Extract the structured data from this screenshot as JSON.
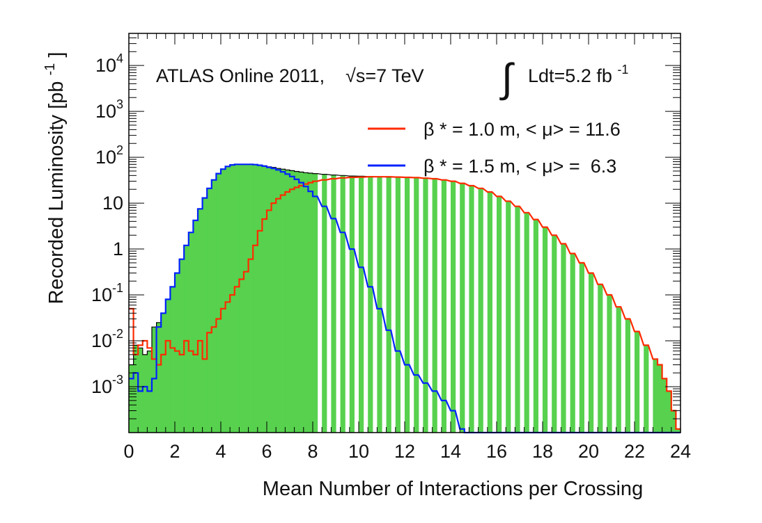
{
  "chart_data": {
    "type": "area",
    "log_y": true,
    "xlabel": "Mean Number of Interactions per Crossing",
    "ylabel": {
      "text": "Recorded Luminosity [pb",
      "sup": "-1",
      "close": "]"
    },
    "xlim": [
      0,
      24
    ],
    "ylim": [
      0.0001,
      50000
    ],
    "x_ticks": [
      "0",
      "2",
      "4",
      "6",
      "8",
      "10",
      "12",
      "14",
      "16",
      "18",
      "20",
      "22",
      "24"
    ],
    "y_ticks": [
      {
        "value": 0.001,
        "base": "10",
        "sup": "-3"
      },
      {
        "value": 0.01,
        "base": "10",
        "sup": "-2"
      },
      {
        "value": 0.1,
        "base": "10",
        "sup": "-1"
      },
      {
        "value": 1,
        "base": "1",
        "sup": ""
      },
      {
        "value": 10,
        "base": "10",
        "sup": ""
      },
      {
        "value": 100,
        "base": "10",
        "sup": "2"
      },
      {
        "value": 1000,
        "base": "10",
        "sup": "3"
      },
      {
        "value": 10000,
        "base": "10",
        "sup": "4"
      }
    ],
    "annotation": {
      "experiment": "ATLAS Online 2011,",
      "sqrt": "√s=7 TeV",
      "integral_sign": "∫",
      "lumi": "Ldt=5.2 fb",
      "lumi_sup": "-1"
    },
    "colors": {
      "total_fill": "#57d14e",
      "total_line": "#000000",
      "red": "#ff2a00",
      "blue": "#0022ff"
    },
    "series": [
      {
        "name": "total",
        "color": "#57d14e",
        "x": [
          0,
          0.2,
          0.4,
          0.6,
          0.8,
          1.0,
          1.2,
          1.4,
          1.6,
          1.8,
          2.0,
          2.2,
          2.4,
          2.6,
          2.8,
          3.0,
          3.2,
          3.4,
          3.6,
          3.8,
          4.0,
          4.2,
          4.4,
          4.6,
          4.8,
          5.0,
          5.2,
          5.4,
          5.6,
          5.8,
          6.0,
          6.2,
          6.4,
          6.6,
          6.8,
          7.0,
          7.2,
          7.4,
          7.6,
          7.8,
          8.0,
          8.4,
          8.8,
          9.2,
          9.6,
          10.0,
          10.4,
          10.8,
          11.2,
          11.6,
          12.0,
          12.4,
          12.8,
          13.2,
          13.6,
          14.0,
          14.4,
          14.8,
          15.2,
          15.6,
          16.0,
          16.4,
          16.8,
          17.2,
          17.6,
          18.0,
          18.4,
          18.8,
          19.2,
          19.6,
          20.0,
          20.4,
          20.8,
          21.2,
          21.6,
          22.0,
          22.4,
          22.8,
          23.0,
          23.2,
          23.4,
          23.6,
          23.8
        ],
        "y": [
          0.003,
          0.008,
          0.007,
          0.005,
          0.006,
          0.02,
          0.025,
          0.04,
          0.08,
          0.15,
          0.3,
          0.6,
          1.2,
          2.3,
          4.2,
          7.5,
          13,
          21,
          32,
          44,
          55,
          63,
          68,
          70,
          70,
          70,
          70,
          69,
          67,
          65,
          62,
          60,
          57,
          55,
          53,
          51,
          49,
          47.5,
          46,
          45,
          44,
          42.5,
          41,
          40,
          39,
          38.5,
          38,
          37.5,
          37,
          37,
          36.5,
          36,
          35,
          34,
          32,
          30,
          27,
          24,
          21,
          17.5,
          14,
          11,
          8.5,
          6.2,
          4.4,
          3,
          2,
          1.3,
          0.8,
          0.5,
          0.3,
          0.17,
          0.1,
          0.055,
          0.03,
          0.016,
          0.008,
          0.004,
          0.003,
          0.0015,
          0.0008,
          0.0003,
          0.00012
        ]
      },
      {
        "name": "β * = 1.0 m, < μ> = 11.6",
        "color": "#ff2a00",
        "x": [
          0,
          0.2,
          0.4,
          0.6,
          0.8,
          1.0,
          1.2,
          1.4,
          1.6,
          1.8,
          2.0,
          2.2,
          2.4,
          2.6,
          2.8,
          3.0,
          3.2,
          3.4,
          3.6,
          3.8,
          4.0,
          4.2,
          4.4,
          4.6,
          4.8,
          5.0,
          5.2,
          5.4,
          5.6,
          5.8,
          6.0,
          6.2,
          6.4,
          6.6,
          6.8,
          7.0,
          7.2,
          7.4,
          7.6,
          7.8,
          8.0,
          8.4,
          8.8,
          9.2,
          9.6,
          10.0,
          10.4,
          10.8,
          11.2,
          11.6,
          12.0,
          12.4,
          12.8,
          13.2,
          13.6,
          14.0,
          14.4,
          14.8,
          15.2,
          15.6,
          16.0,
          16.4,
          16.8,
          17.2,
          17.6,
          18.0,
          18.4,
          18.8,
          19.2,
          19.6,
          20.0,
          20.4,
          20.8,
          21.2,
          21.6,
          22.0,
          22.4,
          22.8,
          23.0,
          23.2,
          23.4,
          23.6,
          23.8
        ],
        "y": [
          0.05,
          0.005,
          0.008,
          0.01,
          0.007,
          0.004,
          0.003,
          0.005,
          0.01,
          0.007,
          0.006,
          0.005,
          0.01,
          0.006,
          0.005,
          0.01,
          0.004,
          0.015,
          0.02,
          0.03,
          0.05,
          0.07,
          0.1,
          0.15,
          0.22,
          0.32,
          0.6,
          1.2,
          2.5,
          4.5,
          7,
          10,
          12.5,
          15,
          17.5,
          20,
          22,
          24,
          26,
          28,
          30,
          32,
          34,
          35.5,
          36.5,
          37,
          37.5,
          37.5,
          37.5,
          37,
          36.5,
          36,
          35,
          34,
          32,
          30,
          27,
          24,
          21,
          17.5,
          14,
          11,
          8.5,
          6.2,
          4.4,
          3,
          2,
          1.3,
          0.8,
          0.5,
          0.3,
          0.17,
          0.1,
          0.055,
          0.03,
          0.016,
          0.008,
          0.004,
          0.003,
          0.0015,
          0.0008,
          0.0003,
          0.00012
        ]
      },
      {
        "name": "β * = 1.5 m, < μ> =  6.3",
        "color": "#0022ff",
        "x": [
          0,
          0.2,
          0.4,
          0.6,
          0.8,
          1.0,
          1.2,
          1.4,
          1.6,
          1.8,
          2.0,
          2.2,
          2.4,
          2.6,
          2.8,
          3.0,
          3.2,
          3.4,
          3.6,
          3.8,
          4.0,
          4.2,
          4.4,
          4.6,
          4.8,
          5.0,
          5.2,
          5.4,
          5.6,
          5.8,
          6.0,
          6.2,
          6.4,
          6.6,
          6.8,
          7.0,
          7.2,
          7.4,
          7.6,
          7.8,
          8.0,
          8.4,
          8.8,
          9.2,
          9.6,
          10.0,
          10.4,
          10.8,
          11.2,
          11.6,
          12.0,
          12.4,
          12.8,
          13.2,
          13.6,
          14.0,
          14.4
        ],
        "y": [
          0.0015,
          0.002,
          0.0008,
          0.001,
          0.0008,
          0.0015,
          0.02,
          0.04,
          0.08,
          0.15,
          0.3,
          0.6,
          1.2,
          2.3,
          4.2,
          7.5,
          13,
          21,
          32,
          44,
          55,
          63,
          68,
          70,
          70,
          70,
          70,
          69,
          67,
          64,
          60,
          57,
          53,
          48,
          43,
          38,
          33,
          28,
          23,
          18,
          14,
          8.5,
          4.6,
          2.3,
          1.0,
          0.4,
          0.15,
          0.05,
          0.017,
          0.006,
          0.003,
          0.0018,
          0.0012,
          0.0008,
          0.0005,
          0.0003,
          0.00012
        ]
      }
    ]
  }
}
